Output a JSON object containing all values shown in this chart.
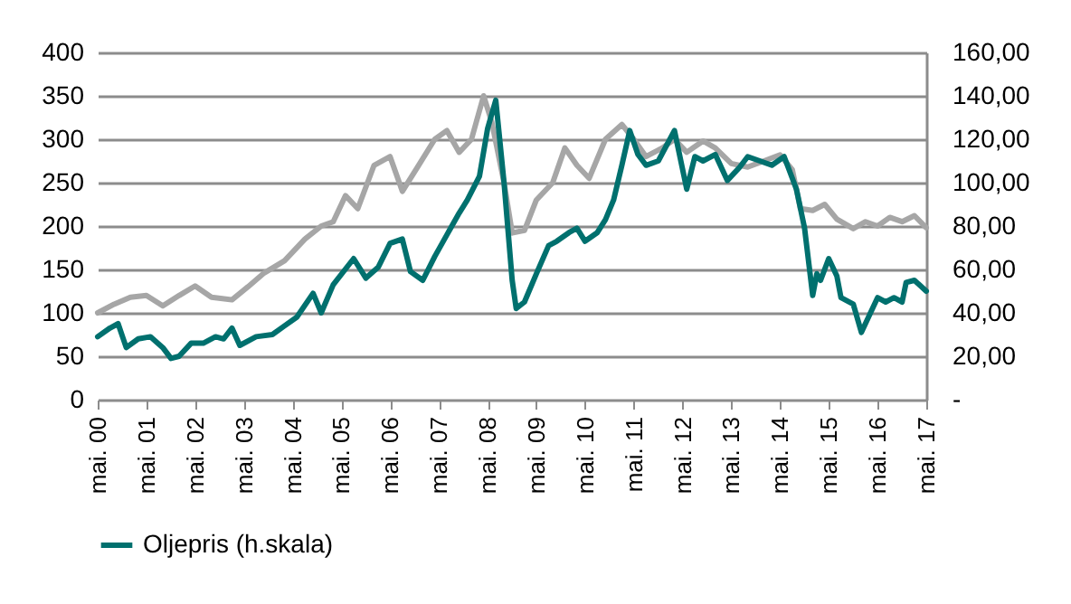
{
  "chart_data": {
    "type": "line",
    "series": [
      {
        "color": "#a6a6a6",
        "axis": "y",
        "x": [
          "2000-05",
          "2000-09",
          "2001-01",
          "2001-05",
          "2001-09",
          "2002-01",
          "2002-05",
          "2002-09",
          "2003-02",
          "2003-06",
          "2003-10",
          "2004-03",
          "2004-08",
          "2004-12",
          "2005-03",
          "2005-06",
          "2005-09",
          "2006-01",
          "2006-05",
          "2006-08",
          "2006-12",
          "2007-04",
          "2007-07",
          "2007-10",
          "2008-01",
          "2008-04",
          "2008-06",
          "2008-09",
          "2008-11",
          "2009-02",
          "2009-05",
          "2009-09",
          "2009-12",
          "2010-03",
          "2010-06",
          "2010-10",
          "2011-02",
          "2011-05",
          "2011-08",
          "2011-12",
          "2012-03",
          "2012-06",
          "2012-10",
          "2013-01",
          "2013-05",
          "2013-09",
          "2014-01",
          "2014-05",
          "2014-08",
          "2014-10",
          "2015-01",
          "2015-04",
          "2015-07",
          "2015-11",
          "2016-02",
          "2016-05",
          "2016-08",
          "2016-11",
          "2017-02",
          "2017-05"
        ],
        "values": [
          100,
          110,
          118,
          120,
          108,
          120,
          131,
          118,
          115,
          130,
          146,
          160,
          185,
          200,
          205,
          235,
          220,
          270,
          280,
          240,
          270,
          300,
          310,
          285,
          300,
          350,
          320,
          250,
          192,
          195,
          230,
          250,
          290,
          270,
          255,
          300,
          317,
          300,
          280,
          290,
          300,
          285,
          298,
          290,
          272,
          268,
          275,
          282,
          265,
          220,
          218,
          225,
          208,
          197,
          205,
          200,
          210,
          205,
          212,
          198
        ]
      },
      {
        "name": "Oljepris (h.skala)",
        "color": "#00706e",
        "axis": "y2",
        "x": [
          "2000-05",
          "2000-08",
          "2000-10",
          "2000-12",
          "2001-03",
          "2001-06",
          "2001-09",
          "2001-11",
          "2002-01",
          "2002-04",
          "2002-07",
          "2002-10",
          "2002-12",
          "2003-02",
          "2003-04",
          "2003-08",
          "2003-12",
          "2004-03",
          "2004-06",
          "2004-10",
          "2004-12",
          "2005-03",
          "2005-08",
          "2005-11",
          "2006-02",
          "2006-05",
          "2006-08",
          "2006-10",
          "2007-01",
          "2007-04",
          "2007-07",
          "2007-10",
          "2007-12",
          "2008-03",
          "2008-05",
          "2008-07",
          "2008-09",
          "2008-11",
          "2008-12",
          "2009-02",
          "2009-05",
          "2009-08",
          "2009-10",
          "2010-01",
          "2010-03",
          "2010-05",
          "2010-08",
          "2010-10",
          "2010-12",
          "2011-02",
          "2011-04",
          "2011-06",
          "2011-08",
          "2011-11",
          "2012-03",
          "2012-06",
          "2012-08",
          "2012-10",
          "2013-01",
          "2013-04",
          "2013-07",
          "2013-09",
          "2013-12",
          "2014-03",
          "2014-06",
          "2014-09",
          "2014-11",
          "2015-01",
          "2015-02",
          "2015-03",
          "2015-05",
          "2015-07",
          "2015-08",
          "2015-11",
          "2016-01",
          "2016-03",
          "2016-05",
          "2016-07",
          "2016-09",
          "2016-11",
          "2016-12",
          "2017-02",
          "2017-05"
        ],
        "values": [
          29,
          33,
          35,
          24,
          28,
          29,
          24,
          19,
          20,
          26,
          26,
          29,
          28,
          33,
          25,
          29,
          30,
          34,
          38,
          49,
          40,
          53,
          65,
          56,
          61,
          72,
          74,
          59,
          55,
          66,
          76,
          86,
          92,
          103,
          125,
          138,
          100,
          55,
          42,
          45,
          58,
          71,
          73,
          77,
          79,
          73,
          77,
          83,
          92,
          108,
          124,
          113,
          108,
          110,
          124,
          97,
          112,
          110,
          113,
          101,
          107,
          112,
          110,
          108,
          112,
          97,
          79,
          48,
          58,
          55,
          65,
          57,
          47,
          44,
          31,
          39,
          47,
          45,
          47,
          45,
          54,
          55,
          50
        ]
      }
    ],
    "xlim": [
      "2000-05",
      "2017-05"
    ],
    "xticks": [
      {
        "value": "2000-05",
        "label": "mai. 00"
      },
      {
        "value": "2001-05",
        "label": "mai. 01"
      },
      {
        "value": "2002-05",
        "label": "mai. 02"
      },
      {
        "value": "2003-05",
        "label": "mai. 03"
      },
      {
        "value": "2004-05",
        "label": "mai. 04"
      },
      {
        "value": "2005-05",
        "label": "mai. 05"
      },
      {
        "value": "2006-05",
        "label": "mai. 06"
      },
      {
        "value": "2007-05",
        "label": "mai. 07"
      },
      {
        "value": "2008-05",
        "label": "mai. 08"
      },
      {
        "value": "2009-05",
        "label": "mai. 09"
      },
      {
        "value": "2010-05",
        "label": "mai. 10"
      },
      {
        "value": "2011-05",
        "label": "mai. 11"
      },
      {
        "value": "2012-05",
        "label": "mai. 12"
      },
      {
        "value": "2013-05",
        "label": "mai. 13"
      },
      {
        "value": "2014-05",
        "label": "mai. 14"
      },
      {
        "value": "2015-05",
        "label": "mai. 15"
      },
      {
        "value": "2016-05",
        "label": "mai. 16"
      },
      {
        "value": "2017-05",
        "label": "mai. 17"
      }
    ],
    "ylim": [
      0,
      400
    ],
    "yticks": [
      0,
      50,
      100,
      150,
      200,
      250,
      300,
      350,
      400
    ],
    "y2lim": [
      0,
      160
    ],
    "y2ticks": [
      {
        "value": 0,
        "label": "-"
      },
      {
        "value": 20,
        "label": "20,00"
      },
      {
        "value": 40,
        "label": "40,00"
      },
      {
        "value": 60,
        "label": "60,00"
      },
      {
        "value": 80,
        "label": "80,00"
      },
      {
        "value": 100,
        "label": "100,00"
      },
      {
        "value": 120,
        "label": "120,00"
      },
      {
        "value": 140,
        "label": "140,00"
      },
      {
        "value": 160,
        "label": "160,00"
      }
    ],
    "grid": "y",
    "legend": "bottom",
    "marker": "none",
    "line_style": "solid"
  }
}
